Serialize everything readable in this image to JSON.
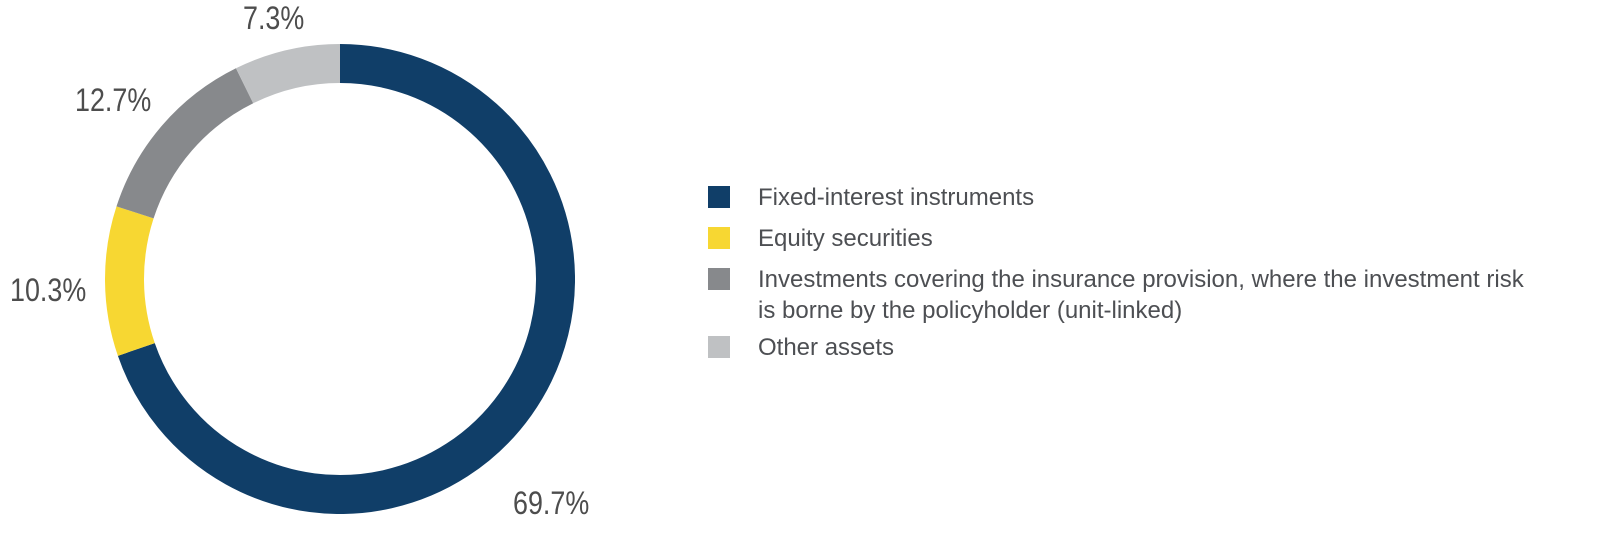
{
  "chart_data": {
    "type": "donut",
    "title": "",
    "legend_position": "right",
    "start_angle_deg": 0,
    "direction": "clockwise",
    "ring_thickness_px": 39,
    "background_color": "#ffffff",
    "label_color": "#4d4d4d",
    "legend_text_color": "#4d4f53",
    "segments": [
      {
        "label": "Fixed-interest instruments",
        "value_pct": 69.7,
        "pct_label": "69.7%",
        "color": "#103e68"
      },
      {
        "label": "Equity securities",
        "value_pct": 10.3,
        "pct_label": "10.3%",
        "color": "#f7d732"
      },
      {
        "label": "Investments covering the insurance provision, where the investment risk\nis borne by the policyholder (unit-linked)",
        "value_pct": 12.7,
        "pct_label": "12.7%",
        "color": "#87898c"
      },
      {
        "label": "Other assets",
        "value_pct": 7.3,
        "pct_label": "7.3%",
        "color": "#bfc1c3"
      }
    ]
  }
}
